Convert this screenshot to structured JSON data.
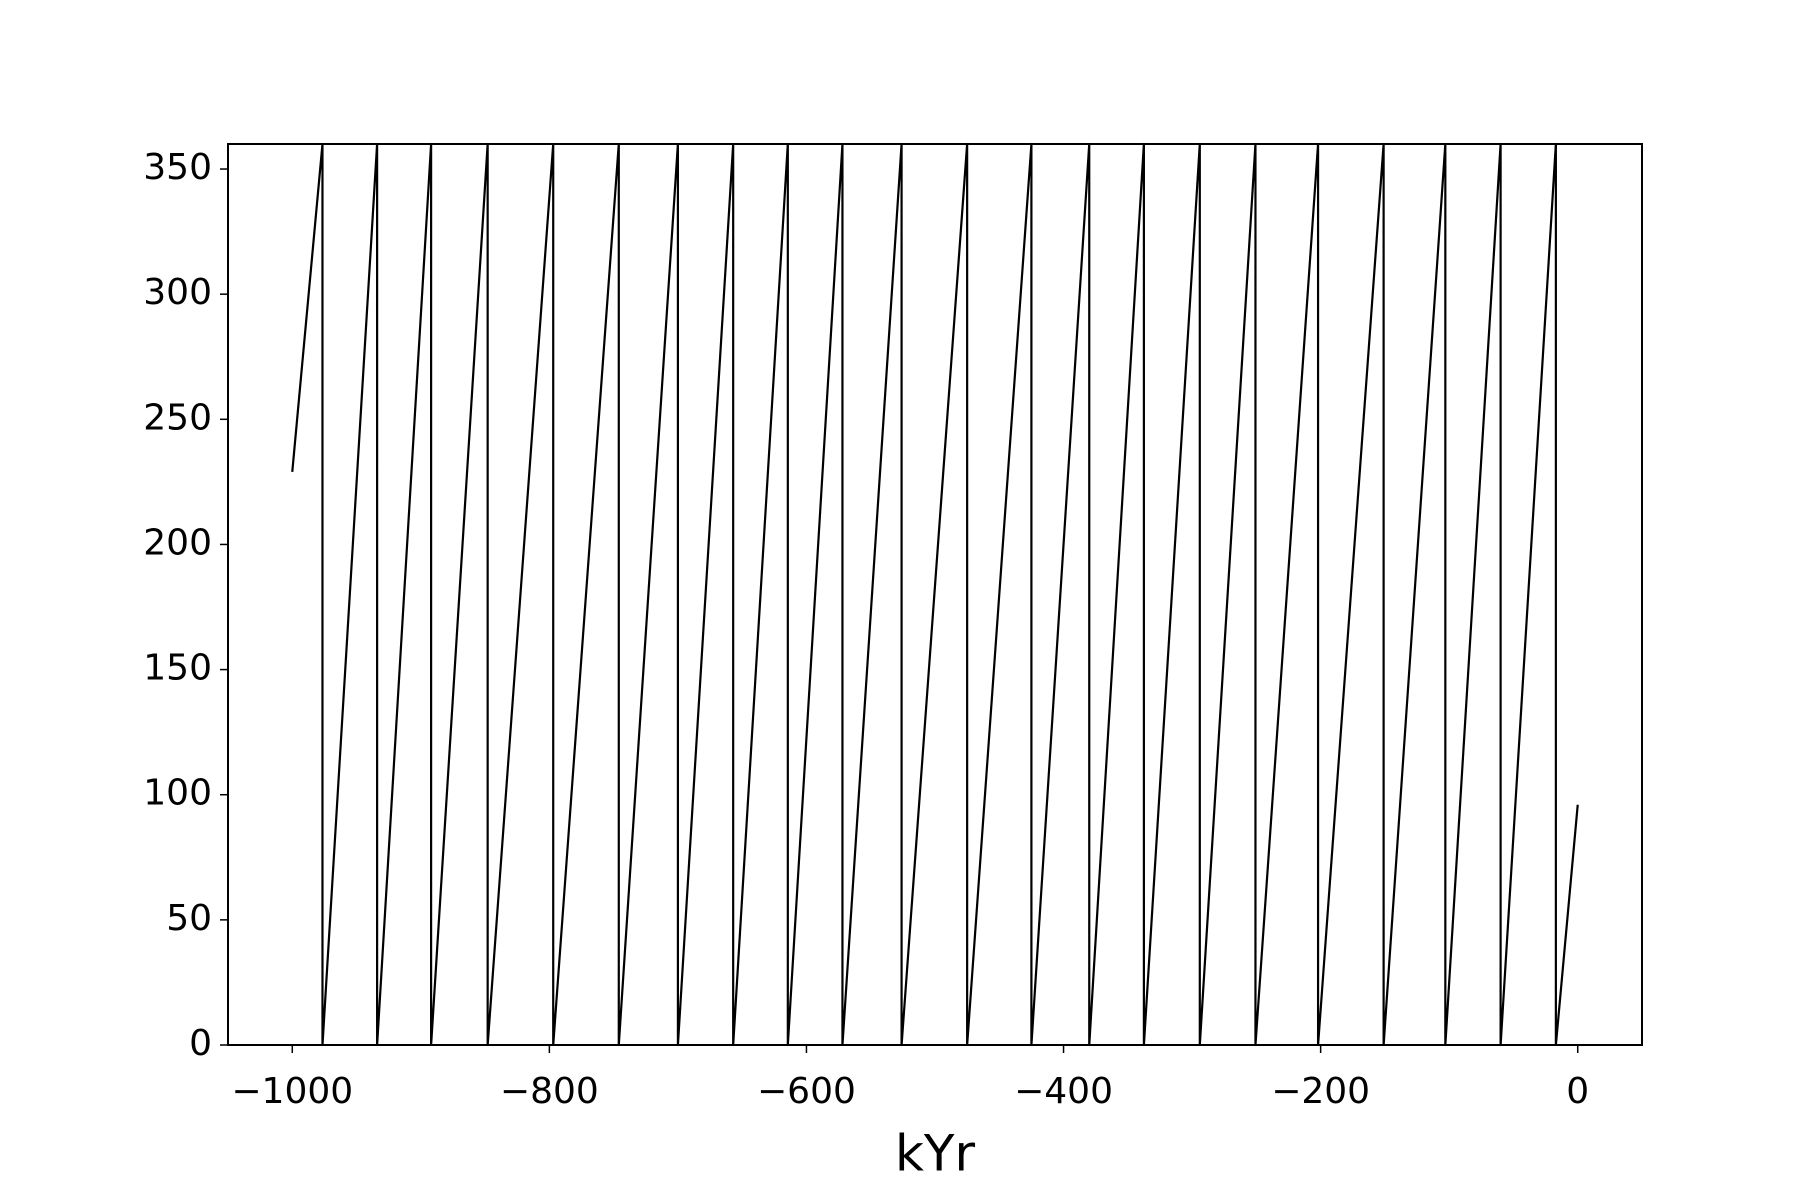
{
  "chart_data": {
    "type": "line",
    "xlabel": "kYr",
    "x": [
      -1000,
      -976.5,
      -976.5,
      -934,
      -934,
      -892,
      -892,
      -848,
      -848,
      -797,
      -797,
      -746,
      -746,
      -700,
      -700,
      -657,
      -657,
      -614.5,
      -614.5,
      -572,
      -572,
      -526,
      -526,
      -475,
      -475,
      -425,
      -425,
      -380,
      -380,
      -337.5,
      -337.5,
      -294,
      -294,
      -250.7,
      -250.7,
      -202,
      -202,
      -151,
      -151,
      -103,
      -103,
      -60,
      -60,
      -17,
      -17,
      0
    ],
    "series": [
      {
        "color": "#000000",
        "values": [
          229,
          360,
          0,
          360,
          0,
          360,
          0,
          360,
          0,
          360,
          0,
          360,
          0,
          360,
          0,
          360,
          0,
          360,
          0,
          360,
          0,
          360,
          0,
          360,
          0,
          360,
          0,
          360,
          0,
          360,
          0,
          360,
          0,
          360,
          0,
          360,
          0,
          360,
          0,
          360,
          0,
          360,
          0,
          360,
          0,
          96
        ]
      }
    ],
    "xlim": [
      -1050,
      50
    ],
    "xticks": [
      {
        "value": -1000,
        "label": "−1000"
      },
      {
        "value": -800,
        "label": "−800"
      },
      {
        "value": -600,
        "label": "−600"
      },
      {
        "value": -400,
        "label": "−400"
      },
      {
        "value": -200,
        "label": "−200"
      },
      0
    ],
    "ylim": [
      0,
      360
    ],
    "yticks": [
      0,
      50,
      100,
      150,
      200,
      250,
      300,
      350
    ],
    "grid": false
  }
}
